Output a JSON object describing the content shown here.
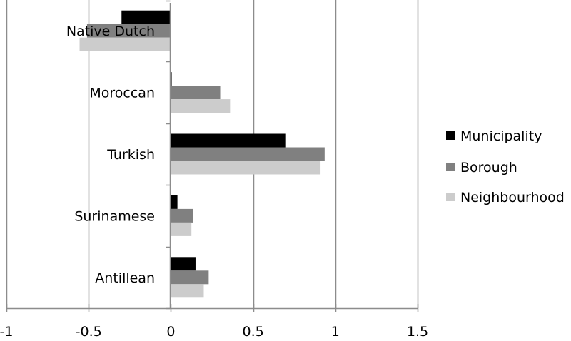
{
  "chart_data": {
    "type": "bar",
    "orientation": "horizontal",
    "title": "",
    "xlabel": "",
    "ylabel": "",
    "categories": [
      "Native Dutch",
      "Moroccan",
      "Turkish",
      "Surinamese",
      "Antillean"
    ],
    "series": [
      {
        "name": "Municipality",
        "color": "#000000",
        "values": [
          -0.3,
          0.005,
          0.7,
          0.04,
          0.15
        ]
      },
      {
        "name": "Borough",
        "color": "#808080",
        "values": [
          -0.51,
          0.3,
          0.935,
          0.135,
          0.23
        ]
      },
      {
        "name": "Neighbourhood",
        "color": "#cccccc",
        "values": [
          -0.555,
          0.36,
          0.91,
          0.125,
          0.2
        ]
      }
    ],
    "xlim": [
      -1,
      1.5
    ],
    "xticks": [
      "-1",
      "-0.5",
      "0",
      "0.5",
      "1",
      "1.5"
    ],
    "xtick_values": [
      -1,
      -0.5,
      0,
      0.5,
      1,
      1.5
    ],
    "grid": true,
    "legend_position": "right"
  },
  "legend": {
    "items": [
      {
        "label": "Municipality",
        "color": "#000000"
      },
      {
        "label": "Borough",
        "color": "#808080"
      },
      {
        "label": "Neighbourhood",
        "color": "#cccccc"
      }
    ]
  }
}
